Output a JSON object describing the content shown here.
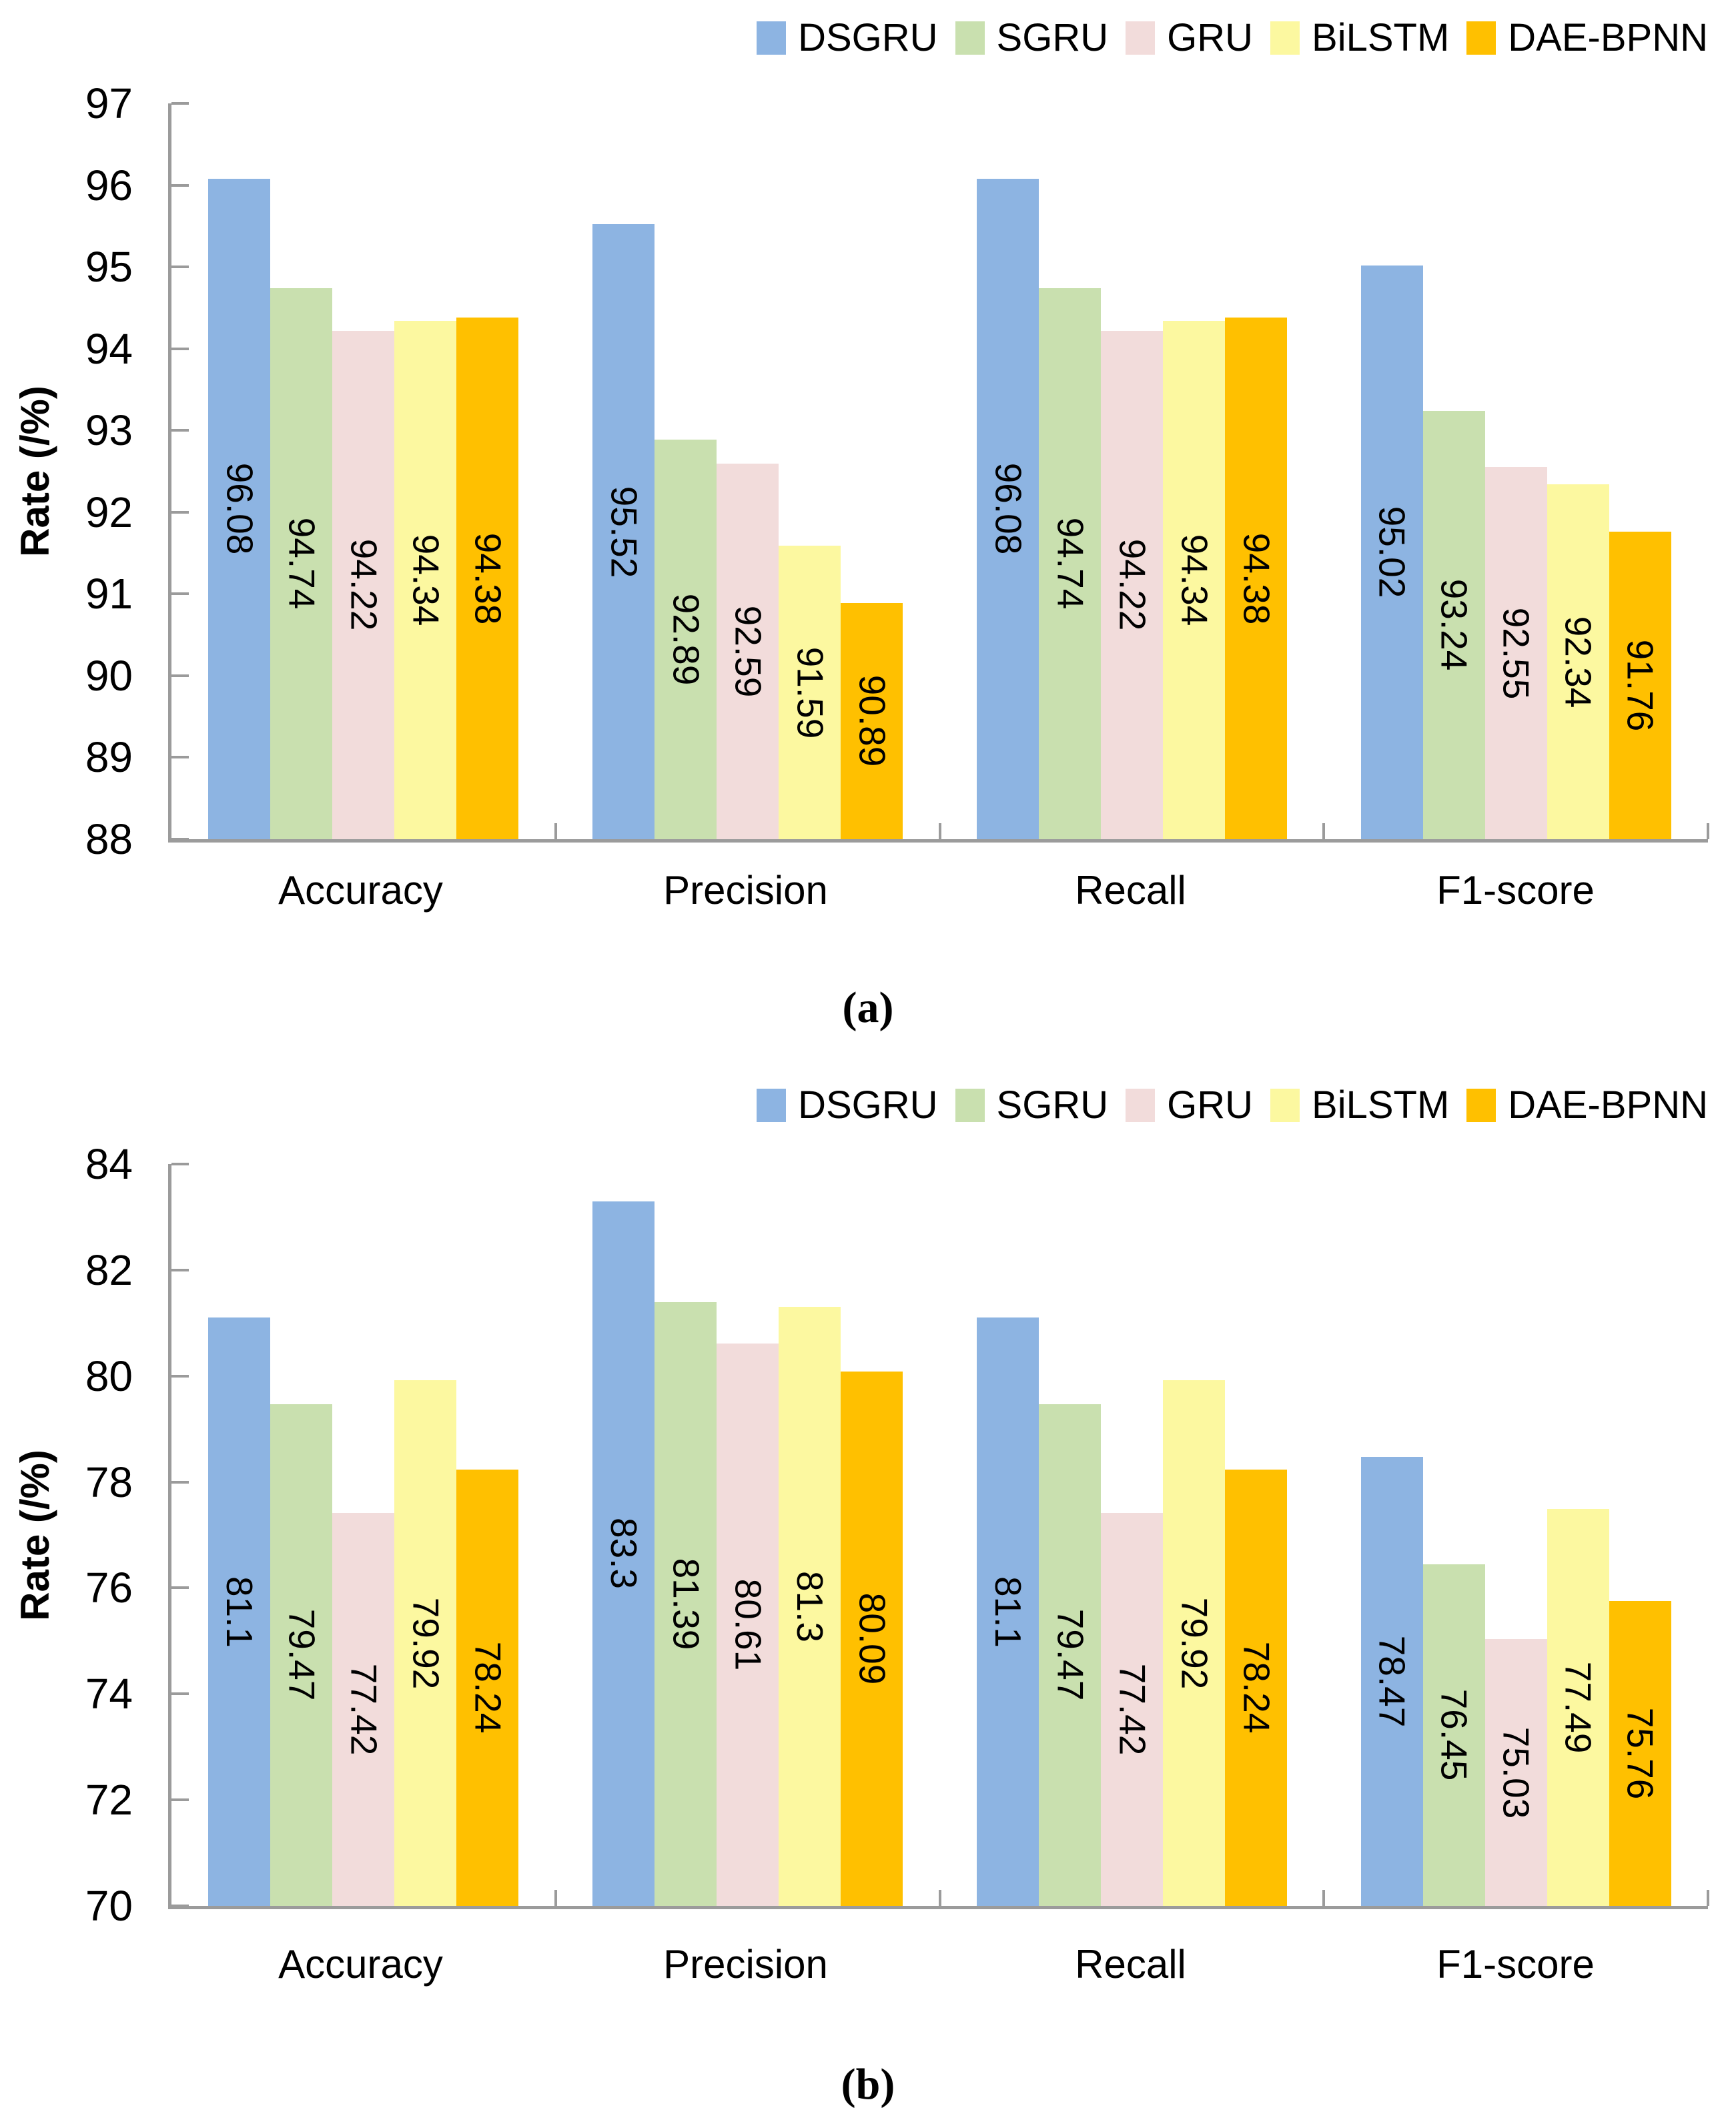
{
  "figure": {
    "series_names": [
      "DSGRU",
      "SGRU",
      "GRU",
      "BiLSTM",
      "DAE-BPNN"
    ],
    "colors": {
      "DSGRU": "#8DB4E2",
      "SGRU": "#C9E0AF",
      "GRU": "#F2DCDB",
      "BiLSTM": "#FCF8A0",
      "DAE-BPNN": "#FFC000",
      "axis": "#9b9b9b",
      "text": "#000000"
    }
  },
  "chart_data": [
    {
      "id": "a",
      "type": "bar",
      "caption": "(a)",
      "ylabel": "Rate (/%)",
      "ylim": [
        88,
        97
      ],
      "yticks": [
        "97",
        "96",
        "95",
        "94",
        "93",
        "92",
        "91",
        "90",
        "89",
        "88"
      ],
      "grid": false,
      "legend_position": "top-right",
      "categories": [
        "Accuracy",
        "Precision",
        "Recall",
        "F1-score"
      ],
      "series": [
        {
          "name": "DSGRU",
          "color": "#8DB4E2",
          "values": [
            96.08,
            95.52,
            96.08,
            95.02
          ],
          "labels": [
            "96.08",
            "95.52",
            "96.08",
            "95.02"
          ]
        },
        {
          "name": "SGRU",
          "color": "#C9E0AF",
          "values": [
            94.74,
            92.89,
            94.74,
            93.24
          ],
          "labels": [
            "94.74",
            "92.89",
            "94.74",
            "93.24"
          ]
        },
        {
          "name": "GRU",
          "color": "#F2DCDB",
          "values": [
            94.22,
            92.59,
            94.22,
            92.55
          ],
          "labels": [
            "94.22",
            "92.59",
            "94.22",
            "92.55"
          ]
        },
        {
          "name": "BiLSTM",
          "color": "#FCF8A0",
          "values": [
            94.34,
            91.59,
            94.34,
            92.34
          ],
          "labels": [
            "94.34",
            "91.59",
            "94.34",
            "92.34"
          ]
        },
        {
          "name": "DAE-BPNN",
          "color": "#FFC000",
          "values": [
            94.38,
            90.89,
            94.38,
            91.76
          ],
          "labels": [
            "94.38",
            "90.89",
            "94.38",
            "91.76"
          ]
        }
      ]
    },
    {
      "id": "b",
      "type": "bar",
      "caption": "(b)",
      "ylabel": "Rate (/%)",
      "ylim": [
        70,
        84
      ],
      "yticks": [
        "84",
        "82",
        "80",
        "78",
        "76",
        "74",
        "72",
        "70"
      ],
      "grid": false,
      "legend_position": "top-right",
      "categories": [
        "Accuracy",
        "Precision",
        "Recall",
        "F1-score"
      ],
      "series": [
        {
          "name": "DSGRU",
          "color": "#8DB4E2",
          "values": [
            81.1,
            83.3,
            81.1,
            78.47
          ],
          "labels": [
            "81.1",
            "83.3",
            "81.1",
            "78.47"
          ]
        },
        {
          "name": "SGRU",
          "color": "#C9E0AF",
          "values": [
            79.47,
            81.39,
            79.47,
            76.45
          ],
          "labels": [
            "79.47",
            "81.39",
            "79.47",
            "76.45"
          ]
        },
        {
          "name": "GRU",
          "color": "#F2DCDB",
          "values": [
            77.42,
            80.61,
            77.42,
            75.03
          ],
          "labels": [
            "77.42",
            "80.61",
            "77.42",
            "75.03"
          ]
        },
        {
          "name": "BiLSTM",
          "color": "#FCF8A0",
          "values": [
            79.92,
            81.3,
            79.92,
            77.49
          ],
          "labels": [
            "79.92",
            "81.3",
            "79.92",
            "77.49"
          ]
        },
        {
          "name": "DAE-BPNN",
          "color": "#FFC000",
          "values": [
            78.24,
            80.09,
            78.24,
            75.76
          ],
          "labels": [
            "78.24",
            "80.09",
            "78.24",
            "75.76"
          ]
        }
      ]
    }
  ]
}
